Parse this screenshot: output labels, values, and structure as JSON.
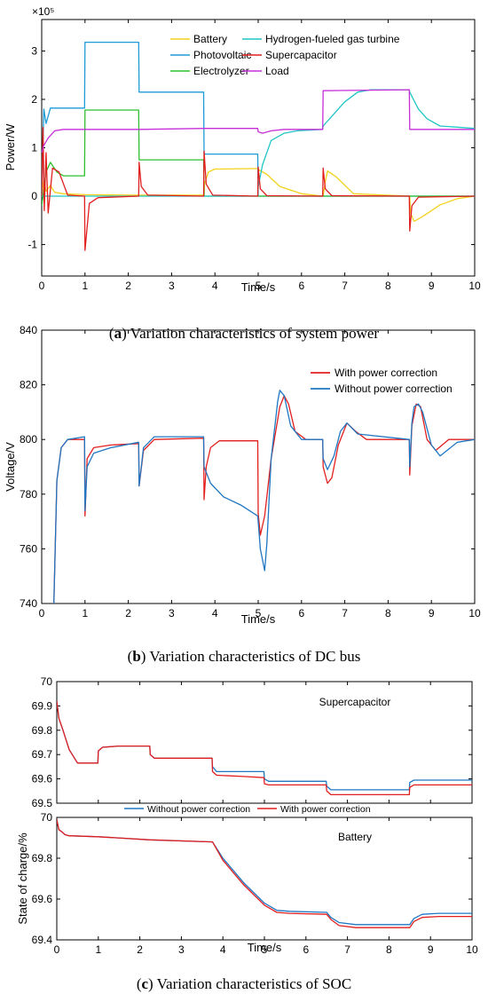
{
  "chart_data": [
    {
      "type": "line",
      "exponent_label": "×10⁵",
      "xlabel": "Time/s",
      "ylabel": "Power/W",
      "xlim": [
        0,
        10
      ],
      "ylim": [
        -1.65,
        3.65
      ],
      "xticks": [
        "0",
        "1",
        "2",
        "3",
        "4",
        "5",
        "6",
        "7",
        "8",
        "9",
        "10"
      ],
      "yticks": [
        "-1",
        "0",
        "1",
        "2",
        "3"
      ],
      "ytick_values": [
        -1,
        0,
        1,
        2,
        3
      ],
      "legend_position": "top-right",
      "caption_label": "a",
      "caption_text": " Variation characteristics of system power",
      "series": [
        {
          "name": "Battery",
          "color": "#f2d21d",
          "x": [
            0,
            0.05,
            0.1,
            0.2,
            0.3,
            0.5,
            1,
            2.25,
            3.75,
            3.76,
            3.85,
            4,
            4.99,
            5.0,
            5.2,
            5.5,
            6,
            6.5,
            6.55,
            6.6,
            6.8,
            7.2,
            8.5,
            8.52,
            8.6,
            8.8,
            9.2,
            9.6,
            10
          ],
          "y": [
            0,
            0.35,
            0.1,
            0.22,
            0.08,
            0.05,
            0.03,
            0.02,
            0.02,
            0.25,
            0.5,
            0.56,
            0.57,
            0.55,
            0.45,
            0.2,
            0.05,
            0.0,
            0.3,
            0.52,
            0.4,
            0.05,
            0.0,
            -0.35,
            -0.52,
            -0.42,
            -0.18,
            -0.05,
            0
          ]
        },
        {
          "name": "Photovoltaic",
          "color": "#1e9bd7",
          "x": [
            0,
            0.05,
            0.1,
            0.2,
            0.99,
            1.0,
            2.24,
            2.25,
            3.74,
            3.75,
            4.99,
            5.0,
            5.3,
            6.5,
            10
          ],
          "y": [
            0,
            1.8,
            1.5,
            1.82,
            1.82,
            3.18,
            3.18,
            2.15,
            2.15,
            0.87,
            0.87,
            0,
            0,
            0,
            0
          ]
        },
        {
          "name": "Electrolyzer",
          "color": "#2fbf2f",
          "x": [
            0,
            0.1,
            0.2,
            0.35,
            0.5,
            0.99,
            1.0,
            2.24,
            2.25,
            3.74,
            3.75,
            10
          ],
          "y": [
            -0.2,
            0.5,
            0.7,
            0.5,
            0.42,
            0.42,
            1.78,
            1.78,
            0.75,
            0.75,
            0,
            0
          ]
        },
        {
          "name": "Hydrogen-fueled gas turbine",
          "color": "#20c5c5",
          "x": [
            0,
            4.99,
            5.0,
            5.1,
            5.3,
            5.6,
            5.9,
            6.49,
            6.5,
            6.8,
            7.0,
            7.3,
            7.6,
            8.49,
            8.5,
            8.7,
            8.9,
            9.2,
            10
          ],
          "y": [
            0,
            0,
            0.2,
            0.65,
            1.15,
            1.3,
            1.35,
            1.38,
            1.45,
            1.75,
            1.95,
            2.15,
            2.2,
            2.2,
            2.15,
            1.8,
            1.6,
            1.45,
            1.4
          ]
        },
        {
          "name": "Supercapacitor",
          "color": "#e21f1f",
          "x": [
            0,
            0.03,
            0.06,
            0.1,
            0.15,
            0.25,
            0.4,
            0.6,
            0.99,
            1.0,
            1.1,
            1.3,
            2.24,
            2.25,
            2.3,
            2.45,
            3.74,
            3.75,
            3.8,
            3.95,
            4.99,
            5.0,
            5.05,
            5.2,
            6.49,
            6.5,
            6.55,
            6.7,
            8.49,
            8.5,
            8.55,
            8.7,
            10
          ],
          "y": [
            0,
            1.42,
            -0.3,
            0.9,
            -0.35,
            0.58,
            0.5,
            0.02,
            0,
            -1.12,
            -0.15,
            -0.03,
            0,
            0.7,
            0.2,
            0.02,
            0,
            0.93,
            0.25,
            0.02,
            0,
            0.6,
            0.15,
            0.01,
            0,
            0.58,
            0.15,
            0.01,
            0,
            -0.72,
            -0.2,
            -0.02,
            0
          ]
        },
        {
          "name": "Load",
          "color": "#c62fd8",
          "x": [
            0,
            0.05,
            0.15,
            0.3,
            0.5,
            1,
            2.25,
            3.75,
            4.99,
            5.0,
            5.1,
            5.3,
            5.6,
            6.49,
            6.5,
            8.49,
            8.5,
            10
          ],
          "y": [
            0.9,
            1.05,
            1.2,
            1.35,
            1.38,
            1.38,
            1.38,
            1.4,
            1.4,
            1.33,
            1.3,
            1.35,
            1.38,
            1.38,
            2.18,
            2.2,
            1.38,
            1.38
          ]
        }
      ]
    },
    {
      "type": "line",
      "xlabel": "Time/s",
      "ylabel": "Voltage/V",
      "xlim": [
        0,
        10
      ],
      "ylim": [
        740,
        840
      ],
      "xticks": [
        "0",
        "1",
        "2",
        "3",
        "4",
        "5",
        "6",
        "7",
        "8",
        "9",
        "10"
      ],
      "yticks": [
        "740",
        "760",
        "780",
        "800",
        "820",
        "840"
      ],
      "ytick_values": [
        740,
        760,
        780,
        800,
        820,
        840
      ],
      "legend_position": "top-right",
      "caption_label": "b",
      "caption_text": " Variation characteristics of DC bus",
      "series": [
        {
          "name": "With power correction",
          "color": "#e21f1f",
          "x": [
            0.28,
            0.35,
            0.45,
            0.6,
            0.99,
            1.0,
            1.05,
            1.2,
            1.6,
            2.24,
            2.25,
            2.35,
            2.6,
            3.74,
            3.75,
            3.8,
            3.9,
            4.1,
            4.99,
            5.0,
            5.05,
            5.15,
            5.3,
            5.5,
            5.6,
            5.7,
            5.85,
            6.1,
            6.49,
            6.5,
            6.6,
            6.7,
            6.85,
            7.05,
            7.25,
            7.5,
            8.49,
            8.5,
            8.55,
            8.65,
            8.75,
            8.9,
            9.1,
            9.4,
            9.8,
            10
          ],
          "y": [
            740,
            785,
            797,
            800,
            800,
            772,
            793,
            797,
            798,
            798.5,
            783,
            796,
            800,
            800.5,
            778,
            790,
            797,
            799.5,
            799.5,
            773,
            765,
            772,
            793,
            812,
            816,
            813,
            803,
            800,
            800,
            790,
            784,
            786,
            798,
            806,
            803,
            800,
            800,
            787,
            805,
            813,
            812,
            800,
            796,
            800,
            800,
            800
          ]
        },
        {
          "name": "Without power correction",
          "color": "#1f77c2",
          "x": [
            0.28,
            0.35,
            0.45,
            0.6,
            0.99,
            1.0,
            1.05,
            1.2,
            1.6,
            2.24,
            2.25,
            2.35,
            2.6,
            3.74,
            3.75,
            3.9,
            4.2,
            4.6,
            4.99,
            5.05,
            5.15,
            5.2,
            5.3,
            5.45,
            5.5,
            5.6,
            5.75,
            6.0,
            6.49,
            6.5,
            6.6,
            6.75,
            6.9,
            7.05,
            7.3,
            8.49,
            8.5,
            8.55,
            8.6,
            8.7,
            8.8,
            9.0,
            9.2,
            9.6,
            10
          ],
          "y": [
            740,
            785,
            797,
            800,
            801,
            774,
            790,
            795,
            797,
            799,
            783,
            797,
            801,
            801,
            790,
            784,
            779,
            776,
            772,
            760,
            752,
            762,
            793,
            814,
            818,
            816,
            805,
            800,
            800,
            793,
            789,
            794,
            803,
            806,
            802,
            800,
            790,
            806,
            812,
            813,
            810,
            798,
            794,
            799,
            800
          ]
        }
      ]
    },
    {
      "type": "line",
      "title": "Supercapacitor",
      "ylabel": "",
      "xlim": [
        0,
        10
      ],
      "ylim": [
        69.5,
        70.0
      ],
      "yticks": [
        "69.5",
        "69.6",
        "69.7",
        "69.8",
        "69.9",
        "70"
      ],
      "ytick_values": [
        69.5,
        69.6,
        69.7,
        69.8,
        69.9,
        70.0
      ],
      "series": [
        {
          "name": "Without power correction",
          "color": "#1f77c2",
          "x": [
            0,
            0.05,
            0.15,
            0.3,
            0.5,
            0.99,
            1.0,
            1.1,
            1.5,
            2.24,
            2.25,
            2.35,
            2.8,
            3.5,
            3.74,
            3.75,
            3.85,
            4.5,
            4.99,
            5.0,
            5.1,
            6.49,
            6.5,
            6.6,
            8.49,
            8.5,
            8.6,
            10
          ],
          "y": [
            69.92,
            69.85,
            69.8,
            69.72,
            69.665,
            69.665,
            69.715,
            69.73,
            69.735,
            69.735,
            69.7,
            69.685,
            69.685,
            69.685,
            69.685,
            69.65,
            69.63,
            69.63,
            69.63,
            69.6,
            69.59,
            69.59,
            69.57,
            69.555,
            69.555,
            69.585,
            69.595,
            69.595
          ]
        },
        {
          "name": "With power correction",
          "color": "#e21f1f",
          "x": [
            0,
            0.05,
            0.15,
            0.3,
            0.5,
            0.99,
            1.0,
            1.1,
            1.5,
            2.24,
            2.25,
            2.35,
            2.8,
            3.5,
            3.74,
            3.75,
            3.85,
            4.5,
            4.99,
            5.0,
            5.1,
            6.49,
            6.5,
            6.6,
            8.49,
            8.5,
            8.6,
            10
          ],
          "y": [
            69.92,
            69.85,
            69.8,
            69.72,
            69.665,
            69.665,
            69.715,
            69.73,
            69.735,
            69.735,
            69.7,
            69.685,
            69.685,
            69.685,
            69.685,
            69.63,
            69.615,
            69.61,
            69.605,
            69.58,
            69.575,
            69.575,
            69.55,
            69.535,
            69.535,
            69.565,
            69.575,
            69.575
          ]
        }
      ]
    },
    {
      "type": "line",
      "title": "Battery",
      "xlabel": "Time/s",
      "ylabel": "State of charge/%",
      "xlim": [
        0,
        10
      ],
      "ylim": [
        69.4,
        70.0
      ],
      "xticks": [
        "0",
        "1",
        "2",
        "3",
        "4",
        "5",
        "6",
        "7",
        "8",
        "9",
        "10"
      ],
      "yticks": [
        "69.4",
        "69.6",
        "69.8",
        "70"
      ],
      "ytick_values": [
        69.4,
        69.6,
        69.8,
        70.0
      ],
      "legend_position": "top-center",
      "legend_entries": [
        "Without power correction",
        "With power correction"
      ],
      "caption_label": "c",
      "caption_text": " Variation characteristics of SOC",
      "series": [
        {
          "name": "Without power correction",
          "color": "#1f77c2",
          "x": [
            0,
            0.05,
            0.12,
            0.2,
            0.3,
            1,
            2.25,
            3.75,
            4.0,
            4.5,
            5.0,
            5.3,
            5.6,
            6.5,
            6.6,
            6.8,
            7.2,
            8.5,
            8.6,
            8.8,
            9.2,
            10
          ],
          "y": [
            69.99,
            69.94,
            69.93,
            69.915,
            69.91,
            69.905,
            69.89,
            69.88,
            69.8,
            69.68,
            69.58,
            69.545,
            69.54,
            69.535,
            69.51,
            69.485,
            69.475,
            69.475,
            69.505,
            69.525,
            69.53,
            69.53
          ]
        },
        {
          "name": "With power correction",
          "color": "#e21f1f",
          "x": [
            0,
            0.05,
            0.12,
            0.2,
            0.3,
            1,
            2.25,
            3.75,
            4.0,
            4.5,
            5.0,
            5.3,
            5.6,
            6.5,
            6.6,
            6.8,
            7.2,
            8.5,
            8.6,
            8.8,
            9.2,
            10
          ],
          "y": [
            69.99,
            69.94,
            69.93,
            69.915,
            69.91,
            69.905,
            69.89,
            69.88,
            69.79,
            69.67,
            69.57,
            69.535,
            69.53,
            69.525,
            69.5,
            69.47,
            69.46,
            69.46,
            69.49,
            69.51,
            69.515,
            69.515
          ]
        }
      ]
    }
  ]
}
